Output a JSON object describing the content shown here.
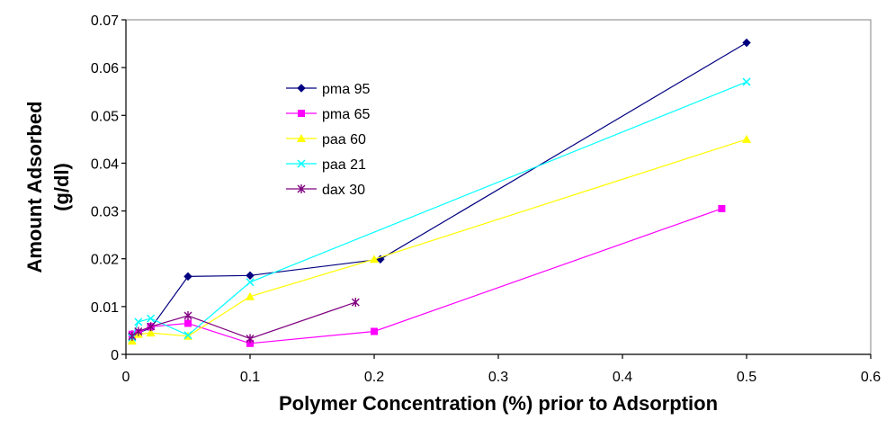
{
  "chart_data": {
    "type": "line",
    "xlabel": "Polymer Concentration (%) prior to Adsorption",
    "ylabel_line1": "Amount Adsorbed",
    "ylabel_line2": "(g/dl)",
    "xlim": [
      0,
      0.6
    ],
    "ylim": [
      0,
      0.07
    ],
    "x_ticks": [
      "0",
      "0.1",
      "0.2",
      "0.3",
      "0.4",
      "0.5",
      "0.6"
    ],
    "y_ticks": [
      "0",
      "0.01",
      "0.02",
      "0.03",
      "0.04",
      "0.05",
      "0.06",
      "0.07"
    ],
    "legend_position": "upper-left inside plot",
    "grid": false,
    "series": [
      {
        "name": "pma 95",
        "color": "#000080",
        "marker": "diamond",
        "points": [
          [
            0.005,
            0.0042
          ],
          [
            0.01,
            0.0045
          ],
          [
            0.02,
            0.0055
          ],
          [
            0.05,
            0.0163
          ],
          [
            0.1,
            0.0165
          ],
          [
            0.205,
            0.0199
          ],
          [
            0.5,
            0.0652
          ]
        ]
      },
      {
        "name": "pma 65",
        "color": "#ff00ff",
        "marker": "square",
        "points": [
          [
            0.005,
            0.0042
          ],
          [
            0.01,
            0.0045
          ],
          [
            0.02,
            0.0058
          ],
          [
            0.05,
            0.0065
          ],
          [
            0.1,
            0.0023
          ],
          [
            0.2,
            0.0048
          ],
          [
            0.48,
            0.0305
          ]
        ]
      },
      {
        "name": "paa 60",
        "color": "#ffff00",
        "marker": "triangle",
        "points": [
          [
            0.005,
            0.0028
          ],
          [
            0.01,
            0.0042
          ],
          [
            0.02,
            0.0045
          ],
          [
            0.05,
            0.0038
          ],
          [
            0.1,
            0.0121
          ],
          [
            0.2,
            0.0199
          ],
          [
            0.5,
            0.045
          ]
        ]
      },
      {
        "name": "paa 21",
        "color": "#00ffff",
        "marker": "x",
        "points": [
          [
            0.005,
            0.0035
          ],
          [
            0.01,
            0.0068
          ],
          [
            0.02,
            0.0075
          ],
          [
            0.05,
            0.004
          ],
          [
            0.1,
            0.0151
          ],
          [
            0.5,
            0.057
          ]
        ]
      },
      {
        "name": "dax 30",
        "color": "#800080",
        "marker": "star",
        "points": [
          [
            0.005,
            0.0038
          ],
          [
            0.01,
            0.0048
          ],
          [
            0.02,
            0.0058
          ],
          [
            0.05,
            0.0081
          ],
          [
            0.1,
            0.0033
          ],
          [
            0.185,
            0.0109
          ]
        ]
      }
    ]
  }
}
